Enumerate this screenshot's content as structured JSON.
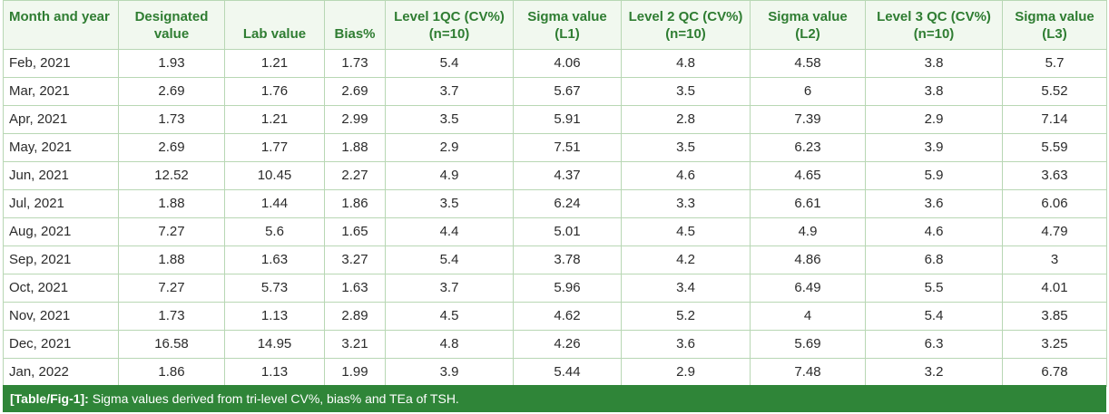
{
  "table": {
    "headers": [
      "Month and year",
      "Designated value",
      "Lab value",
      "Bias%",
      "Level 1QC (CV%) (n=10)",
      "Sigma value (L1)",
      "Level 2 QC (CV%) (n=10)",
      "Sigma value (L2)",
      "Level 3 QC (CV%) (n=10)",
      "Sigma value (L3)"
    ],
    "rows": [
      [
        "Feb, 2021",
        "1.93",
        "1.21",
        "1.73",
        "5.4",
        "4.06",
        "4.8",
        "4.58",
        "3.8",
        "5.7"
      ],
      [
        "Mar, 2021",
        "2.69",
        "1.76",
        "2.69",
        "3.7",
        "5.67",
        "3.5",
        "6",
        "3.8",
        "5.52"
      ],
      [
        "Apr, 2021",
        "1.73",
        "1.21",
        "2.99",
        "3.5",
        "5.91",
        "2.8",
        "7.39",
        "2.9",
        "7.14"
      ],
      [
        "May, 2021",
        "2.69",
        "1.77",
        "1.88",
        "2.9",
        "7.51",
        "3.5",
        "6.23",
        "3.9",
        "5.59"
      ],
      [
        "Jun, 2021",
        "12.52",
        "10.45",
        "2.27",
        "4.9",
        "4.37",
        "4.6",
        "4.65",
        "5.9",
        "3.63"
      ],
      [
        "Jul, 2021",
        "1.88",
        "1.44",
        "1.86",
        "3.5",
        "6.24",
        "3.3",
        "6.61",
        "3.6",
        "6.06"
      ],
      [
        "Aug, 2021",
        "7.27",
        "5.6",
        "1.65",
        "4.4",
        "5.01",
        "4.5",
        "4.9",
        "4.6",
        "4.79"
      ],
      [
        "Sep, 2021",
        "1.88",
        "1.63",
        "3.27",
        "5.4",
        "3.78",
        "4.2",
        "4.86",
        "6.8",
        "3"
      ],
      [
        "Oct, 2021",
        "7.27",
        "5.73",
        "1.63",
        "3.7",
        "5.96",
        "3.4",
        "6.49",
        "5.5",
        "4.01"
      ],
      [
        "Nov, 2021",
        "1.73",
        "1.13",
        "2.89",
        "4.5",
        "4.62",
        "5.2",
        "4",
        "5.4",
        "3.85"
      ],
      [
        "Dec, 2021",
        "16.58",
        "14.95",
        "3.21",
        "4.8",
        "4.26",
        "3.6",
        "5.69",
        "6.3",
        "3.25"
      ],
      [
        "Jan, 2022",
        "1.86",
        "1.13",
        "1.99",
        "3.9",
        "5.44",
        "2.9",
        "7.48",
        "3.2",
        "6.78"
      ]
    ]
  },
  "caption": {
    "tag": "[Table/Fig-1]:",
    "text": " Sigma values derived from tri-level CV%, bias% and TEa of TSH."
  },
  "colors": {
    "header_text": "#2f7d32",
    "header_bg": "#f1f8ef",
    "border": "#b8d7b4",
    "caption_bg": "#2f8538"
  }
}
